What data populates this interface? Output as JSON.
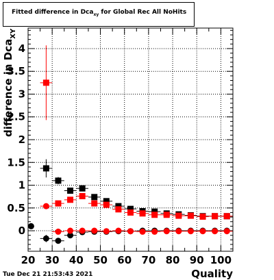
{
  "title": {
    "prefix": "Fitted difference in Dca",
    "subscript": "xy",
    "suffix": " for Global Rec All NoHits"
  },
  "timestamp": "Tue Dec 21 21:53:43 2021",
  "chart_data": {
    "type": "scatter",
    "xlabel": "Quality",
    "ylabel": "difference in Dca",
    "ylabel_sub": "XY",
    "xlim": [
      20,
      105
    ],
    "ylim": [
      -0.45,
      4.45
    ],
    "xticks": [
      20,
      30,
      40,
      50,
      60,
      70,
      80,
      90,
      100
    ],
    "yticks": [
      0,
      0.5,
      1,
      1.5,
      2,
      2.5,
      3,
      3.5,
      4
    ],
    "ytick_labels": [
      "0",
      "0.5",
      "1",
      "1.5",
      "2",
      "2.5",
      "3",
      "3.5",
      "4"
    ],
    "grid": true,
    "series": [
      {
        "marker": "square",
        "color": "#000000",
        "points": [
          {
            "x": 27.5,
            "y": 1.37,
            "yerr": 0.2
          },
          {
            "x": 32.5,
            "y": 1.1,
            "yerr": 0.08
          },
          {
            "x": 37.5,
            "y": 0.88,
            "yerr": 0.05
          },
          {
            "x": 42.5,
            "y": 0.93,
            "yerr": 0.05
          },
          {
            "x": 47.5,
            "y": 0.74,
            "yerr": 0.04
          },
          {
            "x": 52.5,
            "y": 0.65,
            "yerr": 0.03
          },
          {
            "x": 57.5,
            "y": 0.54,
            "yerr": 0.03
          },
          {
            "x": 62.5,
            "y": 0.48,
            "yerr": 0.02
          },
          {
            "x": 67.5,
            "y": 0.43,
            "yerr": 0.02
          },
          {
            "x": 72.5,
            "y": 0.42,
            "yerr": 0.02
          },
          {
            "x": 77.5,
            "y": 0.38,
            "yerr": 0.02
          },
          {
            "x": 82.5,
            "y": 0.36,
            "yerr": 0.02
          },
          {
            "x": 87.5,
            "y": 0.34,
            "yerr": 0.02
          },
          {
            "x": 92.5,
            "y": 0.32,
            "yerr": 0.02
          },
          {
            "x": 97.5,
            "y": 0.32,
            "yerr": 0.02
          },
          {
            "x": 102.5,
            "y": 0.32,
            "yerr": 0.02
          }
        ]
      },
      {
        "marker": "square",
        "color": "#ff0000",
        "points": [
          {
            "x": 27.5,
            "y": 3.25,
            "yerr": 0.82
          },
          {
            "x": 32.5,
            "y": 0.6,
            "yerr": 0.05
          },
          {
            "x": 37.5,
            "y": 0.68,
            "yerr": 0.04
          },
          {
            "x": 42.5,
            "y": 0.76,
            "yerr": 0.04
          },
          {
            "x": 47.5,
            "y": 0.6,
            "yerr": 0.03
          },
          {
            "x": 52.5,
            "y": 0.57,
            "yerr": 0.03
          },
          {
            "x": 57.5,
            "y": 0.47,
            "yerr": 0.02
          },
          {
            "x": 62.5,
            "y": 0.4,
            "yerr": 0.02
          },
          {
            "x": 67.5,
            "y": 0.38,
            "yerr": 0.02
          },
          {
            "x": 72.5,
            "y": 0.35,
            "yerr": 0.02
          },
          {
            "x": 77.5,
            "y": 0.35,
            "yerr": 0.02
          },
          {
            "x": 82.5,
            "y": 0.33,
            "yerr": 0.02
          },
          {
            "x": 87.5,
            "y": 0.33,
            "yerr": 0.02
          },
          {
            "x": 92.5,
            "y": 0.31,
            "yerr": 0.02
          },
          {
            "x": 97.5,
            "y": 0.32,
            "yerr": 0.02
          },
          {
            "x": 102.5,
            "y": 0.32,
            "yerr": 0.02
          }
        ]
      },
      {
        "marker": "circle",
        "color": "#000000",
        "points": [
          {
            "x": 21.25,
            "y": 0.1,
            "yerr": 0.04
          },
          {
            "x": 27.5,
            "y": -0.17,
            "yerr": 0.08
          },
          {
            "x": 32.5,
            "y": -0.22,
            "yerr": 0.03
          },
          {
            "x": 37.5,
            "y": -0.1,
            "yerr": 0.03
          },
          {
            "x": 42.5,
            "y": -0.03,
            "yerr": 0.02
          },
          {
            "x": 47.5,
            "y": -0.02,
            "yerr": 0.02
          },
          {
            "x": 52.5,
            "y": -0.02,
            "yerr": 0.02
          },
          {
            "x": 57.5,
            "y": -0.01,
            "yerr": 0.01
          },
          {
            "x": 62.5,
            "y": -0.01,
            "yerr": 0.01
          },
          {
            "x": 67.5,
            "y": 0.0,
            "yerr": 0.01
          },
          {
            "x": 72.5,
            "y": 0.0,
            "yerr": 0.01
          },
          {
            "x": 77.5,
            "y": 0.0,
            "yerr": 0.01
          },
          {
            "x": 82.5,
            "y": 0.0,
            "yerr": 0.01
          },
          {
            "x": 87.5,
            "y": 0.0,
            "yerr": 0.01
          },
          {
            "x": 92.5,
            "y": 0.0,
            "yerr": 0.01
          },
          {
            "x": 97.5,
            "y": 0.0,
            "yerr": 0.01
          },
          {
            "x": 102.5,
            "y": 0.0,
            "yerr": 0.01
          }
        ]
      },
      {
        "marker": "circle",
        "color": "#ff0000",
        "points": [
          {
            "x": 27.5,
            "y": 0.54,
            "yerr": 0.05
          },
          {
            "x": 32.5,
            "y": -0.02,
            "yerr": 0.02
          },
          {
            "x": 37.5,
            "y": 0.0,
            "yerr": 0.02
          },
          {
            "x": 42.5,
            "y": 0.0,
            "yerr": 0.02
          },
          {
            "x": 47.5,
            "y": 0.0,
            "yerr": 0.01
          },
          {
            "x": 52.5,
            "y": -0.01,
            "yerr": 0.01
          },
          {
            "x": 57.5,
            "y": 0.0,
            "yerr": 0.01
          },
          {
            "x": 62.5,
            "y": -0.01,
            "yerr": 0.01
          },
          {
            "x": 67.5,
            "y": -0.02,
            "yerr": 0.01
          },
          {
            "x": 72.5,
            "y": -0.02,
            "yerr": 0.01
          },
          {
            "x": 77.5,
            "y": -0.01,
            "yerr": 0.01
          },
          {
            "x": 82.5,
            "y": -0.01,
            "yerr": 0.01
          },
          {
            "x": 87.5,
            "y": -0.01,
            "yerr": 0.01
          },
          {
            "x": 92.5,
            "y": -0.01,
            "yerr": 0.01
          },
          {
            "x": 97.5,
            "y": -0.01,
            "yerr": 0.01
          },
          {
            "x": 102.5,
            "y": -0.01,
            "yerr": 0.01
          }
        ]
      }
    ]
  }
}
